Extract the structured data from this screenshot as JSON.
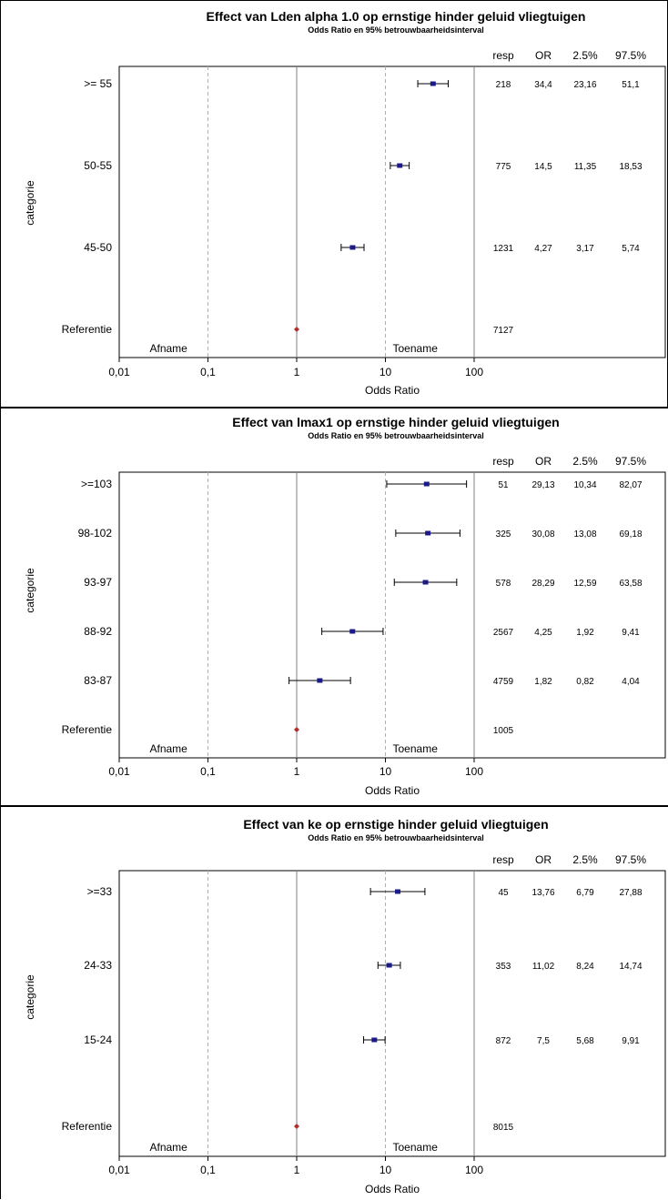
{
  "chart_data": [
    {
      "type": "forest",
      "title": "Effect van Lden alpha 1.0 op ernstige hinder geluid vliegtuigen",
      "subtitle": "Odds Ratio en 95% betrouwbaarheidsinterval",
      "xlabel": "Odds Ratio",
      "ylabel": "categorie",
      "x_scale": "log",
      "xlim": [
        0.01,
        100
      ],
      "x_ticks": [
        "0,01",
        "0,1",
        "1",
        "10",
        "100"
      ],
      "left_note": "Afname",
      "right_note": "Toename",
      "columns": [
        "resp",
        "OR",
        "2.5%",
        "97.5%"
      ],
      "rows": [
        {
          "label": ">= 55",
          "resp": "218",
          "or": 34.4,
          "lo": 23.16,
          "hi": 51.1,
          "or_text": "34,4",
          "lo_text": "23,16",
          "hi_text": "51,1"
        },
        {
          "label": "50-55",
          "resp": "775",
          "or": 14.5,
          "lo": 11.35,
          "hi": 18.53,
          "or_text": "14,5",
          "lo_text": "11,35",
          "hi_text": "18,53"
        },
        {
          "label": "45-50",
          "resp": "1231",
          "or": 4.27,
          "lo": 3.17,
          "hi": 5.74,
          "or_text": "4,27",
          "lo_text": "3,17",
          "hi_text": "5,74"
        },
        {
          "label": "Referentie",
          "resp": "7127",
          "or": 1,
          "reference": true
        }
      ]
    },
    {
      "type": "forest",
      "title": "Effect van lmax1   op ernstige hinder geluid vliegtuigen",
      "subtitle": "Odds Ratio en 95% betrouwbaarheidsinterval",
      "xlabel": "Odds Ratio",
      "ylabel": "categorie",
      "x_scale": "log",
      "xlim": [
        0.01,
        100
      ],
      "x_ticks": [
        "0,01",
        "0,1",
        "1",
        "10",
        "100"
      ],
      "left_note": "Afname",
      "right_note": "Toename",
      "columns": [
        "resp",
        "OR",
        "2.5%",
        "97.5%"
      ],
      "rows": [
        {
          "label": ">=103",
          "resp": "51",
          "or": 29.13,
          "lo": 10.34,
          "hi": 82.07,
          "or_text": "29,13",
          "lo_text": "10,34",
          "hi_text": "82,07"
        },
        {
          "label": "98-102",
          "resp": "325",
          "or": 30.08,
          "lo": 13.08,
          "hi": 69.18,
          "or_text": "30,08",
          "lo_text": "13,08",
          "hi_text": "69,18"
        },
        {
          "label": "93-97",
          "resp": "578",
          "or": 28.29,
          "lo": 12.59,
          "hi": 63.58,
          "or_text": "28,29",
          "lo_text": "12,59",
          "hi_text": "63,58"
        },
        {
          "label": "88-92",
          "resp": "2567",
          "or": 4.25,
          "lo": 1.92,
          "hi": 9.41,
          "or_text": "4,25",
          "lo_text": "1,92",
          "hi_text": "9,41"
        },
        {
          "label": "83-87",
          "resp": "4759",
          "or": 1.82,
          "lo": 0.82,
          "hi": 4.04,
          "or_text": "1,82",
          "lo_text": "0,82",
          "hi_text": "4,04"
        },
        {
          "label": "Referentie",
          "resp": "1005",
          "or": 1,
          "reference": true
        }
      ]
    },
    {
      "type": "forest",
      "title": "Effect van ke      op ernstige hinder geluid vliegtuigen",
      "subtitle": "Odds Ratio en 95% betrouwbaarheidsinterval",
      "xlabel": "Odds Ratio",
      "ylabel": "categorie",
      "x_scale": "log",
      "xlim": [
        0.01,
        100
      ],
      "x_ticks": [
        "0,01",
        "0,1",
        "1",
        "10",
        "100"
      ],
      "left_note": "Afname",
      "right_note": "Toename",
      "columns": [
        "resp",
        "OR",
        "2.5%",
        "97.5%"
      ],
      "rows": [
        {
          "label": ">=33",
          "resp": "45",
          "or": 13.76,
          "lo": 6.79,
          "hi": 27.88,
          "or_text": "13,76",
          "lo_text": "6,79",
          "hi_text": "27,88"
        },
        {
          "label": "24-33",
          "resp": "353",
          "or": 11.02,
          "lo": 8.24,
          "hi": 14.74,
          "or_text": "11,02",
          "lo_text": "8,24",
          "hi_text": "14,74"
        },
        {
          "label": "15-24",
          "resp": "872",
          "or": 7.5,
          "lo": 5.68,
          "hi": 9.91,
          "or_text": "7,5",
          "lo_text": "5,68",
          "hi_text": "9,91"
        },
        {
          "label": "Referentie",
          "resp": "8015",
          "or": 1,
          "reference": true
        }
      ]
    }
  ],
  "colors": {
    "marker": "#1a1a8c",
    "reference_marker": "#b03030",
    "axis": "#000000",
    "dashed_grid": "#b0b0b0",
    "solid_grid": "#808080"
  }
}
